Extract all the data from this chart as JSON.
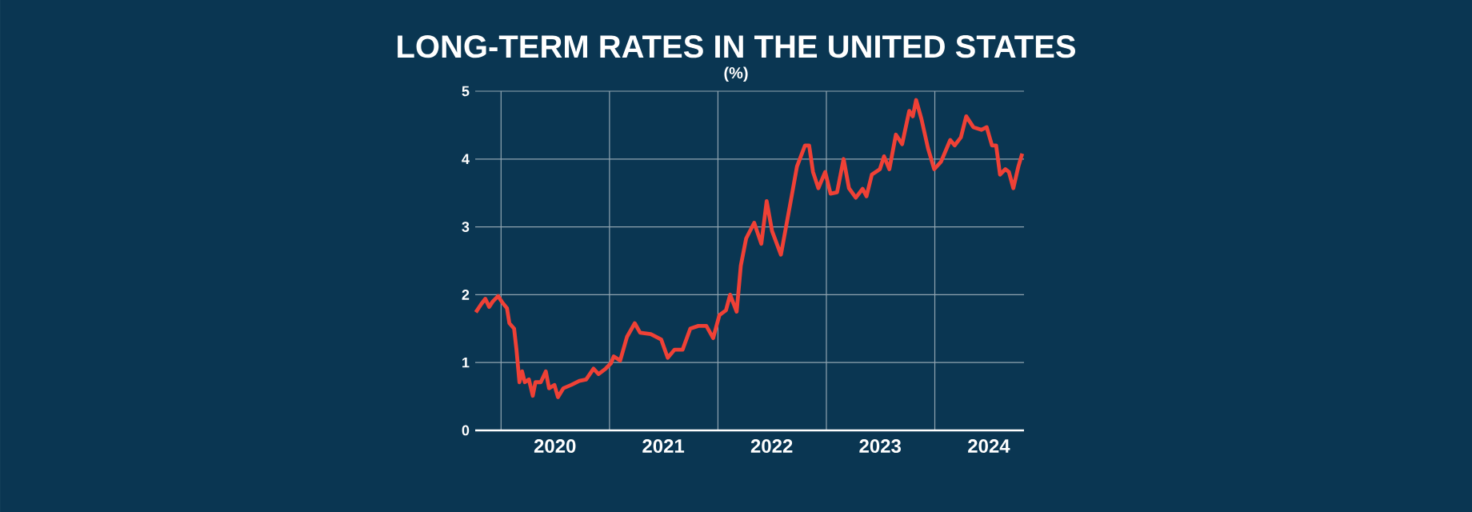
{
  "chart_data": {
    "type": "line",
    "title": "LONG-TERM RATES IN THE UNITED STATES",
    "subtitle": "(%)",
    "x": [
      "2019-10-08",
      "2019-10-26",
      "2019-11-09",
      "2019-11-22",
      "2019-12-04",
      "2019-12-22",
      "2020-01-06",
      "2020-01-21",
      "2020-01-29",
      "2020-02-14",
      "2020-02-22",
      "2020-03-03",
      "2020-03-12",
      "2020-03-21",
      "2020-04-04",
      "2020-04-17",
      "2020-04-26",
      "2020-05-14",
      "2020-05-31",
      "2020-06-11",
      "2020-06-29",
      "2020-07-11",
      "2020-07-29",
      "2020-08-25",
      "2020-09-21",
      "2020-10-14",
      "2020-11-08",
      "2020-11-25",
      "2020-12-19",
      "2021-01-06",
      "2021-01-15",
      "2021-02-06",
      "2021-03-01",
      "2021-03-27",
      "2021-04-14",
      "2021-05-20",
      "2021-06-24",
      "2021-07-16",
      "2021-08-08",
      "2021-09-04",
      "2021-09-30",
      "2021-10-27",
      "2021-11-23",
      "2021-12-16",
      "2022-01-06",
      "2022-01-28",
      "2022-02-11",
      "2022-03-05",
      "2022-03-19",
      "2022-04-06",
      "2022-05-03",
      "2022-05-27",
      "2022-06-14",
      "2022-07-02",
      "2022-08-01",
      "2022-09-06",
      "2022-09-24",
      "2022-10-21",
      "2022-11-04",
      "2022-11-17",
      "2022-12-05",
      "2022-12-28",
      "2023-01-15",
      "2023-02-06",
      "2023-02-28",
      "2023-03-18",
      "2023-04-10",
      "2023-05-03",
      "2023-05-16",
      "2023-06-03",
      "2023-06-30",
      "2023-07-14",
      "2023-08-01",
      "2023-08-23",
      "2023-09-13",
      "2023-10-07",
      "2023-10-19",
      "2023-10-30",
      "2023-11-17",
      "2023-12-09",
      "2023-12-30",
      "2024-01-22",
      "2024-02-22",
      "2024-03-08",
      "2024-03-29",
      "2024-04-16",
      "2024-05-10",
      "2024-06-06",
      "2024-06-24",
      "2024-07-12",
      "2024-07-26",
      "2024-08-08",
      "2024-08-26",
      "2024-09-07",
      "2024-09-22",
      "2024-10-09",
      "2024-10-22"
    ],
    "series": [
      {
        "color": "#ef4136",
        "values": [
          1.74,
          1.86,
          1.94,
          1.82,
          1.9,
          1.98,
          1.88,
          1.8,
          1.58,
          1.5,
          1.19,
          0.71,
          0.87,
          0.71,
          0.75,
          0.51,
          0.71,
          0.71,
          0.87,
          0.62,
          0.67,
          0.49,
          0.62,
          0.67,
          0.73,
          0.75,
          0.91,
          0.83,
          0.91,
          0.99,
          1.09,
          1.03,
          1.38,
          1.58,
          1.44,
          1.42,
          1.34,
          1.07,
          1.19,
          1.19,
          1.5,
          1.54,
          1.54,
          1.36,
          1.7,
          1.77,
          2.0,
          1.75,
          2.43,
          2.83,
          3.06,
          2.75,
          3.38,
          2.94,
          2.59,
          3.45,
          3.89,
          4.2,
          4.2,
          3.81,
          3.57,
          3.81,
          3.49,
          3.51,
          4.0,
          3.57,
          3.43,
          3.56,
          3.45,
          3.77,
          3.85,
          4.04,
          3.85,
          4.36,
          4.22,
          4.71,
          4.63,
          4.87,
          4.59,
          4.16,
          3.85,
          3.96,
          4.28,
          4.2,
          4.32,
          4.63,
          4.47,
          4.43,
          4.47,
          4.2,
          4.2,
          3.77,
          3.85,
          3.81,
          3.57,
          3.89,
          4.08
        ]
      }
    ],
    "xlim": [
      "2019-10-06",
      "2024-10-28"
    ],
    "xticks": [
      {
        "value": "2020-01-01",
        "label": null
      },
      {
        "value": "2020-07-01",
        "label": "2020"
      },
      {
        "value": "2021-01-01",
        "label": null
      },
      {
        "value": "2021-07-01",
        "label": "2021"
      },
      {
        "value": "2022-01-01",
        "label": null
      },
      {
        "value": "2022-07-01",
        "label": "2022"
      },
      {
        "value": "2023-01-01",
        "label": null
      },
      {
        "value": "2023-07-01",
        "label": "2023"
      },
      {
        "value": "2024-01-01",
        "label": null
      },
      {
        "value": "2024-07-01",
        "label": "2024"
      }
    ],
    "ylim": [
      0,
      5
    ],
    "yticks": [
      0,
      1,
      2,
      3,
      4,
      5
    ],
    "grid": true
  }
}
